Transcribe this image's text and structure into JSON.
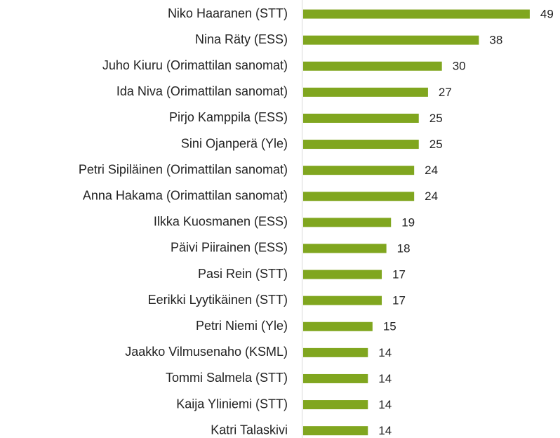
{
  "chart_data": {
    "type": "bar",
    "orientation": "horizontal",
    "categories": [
      "Niko Haaranen (STT)",
      "Nina Räty (ESS)",
      "Juho Kiuru (Orimattilan sanomat)",
      "Ida Niva (Orimattilan sanomat)",
      "Pirjo Kamppila (ESS)",
      "Sini Ojanperä (Yle)",
      "Petri Sipiläinen (Orimattilan sanomat)",
      "Anna Hakama (Orimattilan sanomat)",
      "Ilkka Kuosmanen (ESS)",
      "Päivi Piirainen (ESS)",
      "Pasi Rein (STT)",
      "Eerikki Lyytikäinen (STT)",
      "Petri Niemi (Yle)",
      "Jaakko Vilmusenaho (KSML)",
      "Tommi Salmela (STT)",
      "Kaija Yliniemi (STT)",
      "Katri Talaskivi"
    ],
    "values": [
      49,
      38,
      30,
      27,
      25,
      25,
      24,
      24,
      19,
      18,
      17,
      17,
      15,
      14,
      14,
      14,
      14
    ],
    "color": "#80a61f",
    "xlim": [
      0,
      50
    ]
  }
}
